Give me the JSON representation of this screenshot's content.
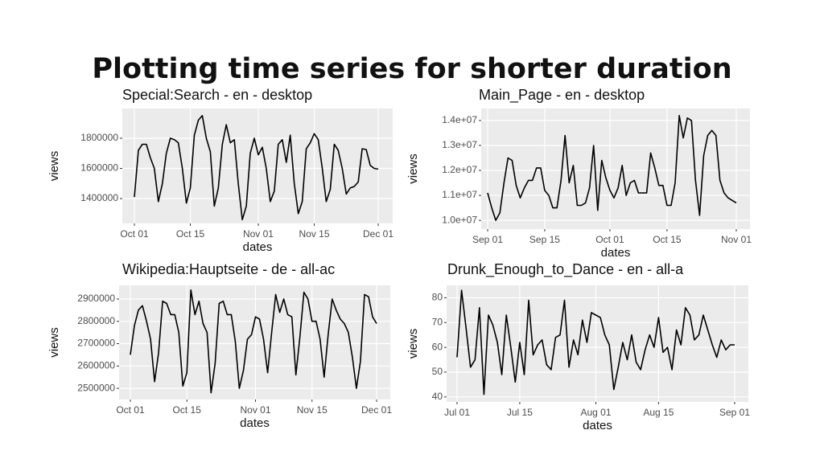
{
  "title": "Plotting time series for shorter duration",
  "chart_data": [
    {
      "type": "line",
      "title": "Special:Search - en - desktop",
      "x_label": "dates",
      "y_label": "views",
      "color": "#000000",
      "grid": true,
      "x": [
        "Oct 01",
        "Oct 02",
        "Oct 03",
        "Oct 04",
        "Oct 05",
        "Oct 06",
        "Oct 07",
        "Oct 08",
        "Oct 09",
        "Oct 10",
        "Oct 11",
        "Oct 12",
        "Oct 13",
        "Oct 14",
        "Oct 15",
        "Oct 16",
        "Oct 17",
        "Oct 18",
        "Oct 19",
        "Oct 20",
        "Oct 21",
        "Oct 22",
        "Oct 23",
        "Oct 24",
        "Oct 25",
        "Oct 26",
        "Oct 27",
        "Oct 28",
        "Oct 29",
        "Oct 30",
        "Oct 31",
        "Nov 01",
        "Nov 02",
        "Nov 03",
        "Nov 04",
        "Nov 05",
        "Nov 06",
        "Nov 07",
        "Nov 08",
        "Nov 09",
        "Nov 10",
        "Nov 11",
        "Nov 12",
        "Nov 13",
        "Nov 14",
        "Nov 15",
        "Nov 16",
        "Nov 17",
        "Nov 18",
        "Nov 19",
        "Nov 20",
        "Nov 21",
        "Nov 22",
        "Nov 23",
        "Nov 24",
        "Nov 25",
        "Nov 26",
        "Nov 27",
        "Nov 28",
        "Nov 29",
        "Nov 30",
        "Dec 01"
      ],
      "values": [
        1410000,
        1720000,
        1760000,
        1760000,
        1670000,
        1600000,
        1380000,
        1500000,
        1700000,
        1800000,
        1790000,
        1770000,
        1600000,
        1370000,
        1470000,
        1820000,
        1920000,
        1950000,
        1800000,
        1710000,
        1350000,
        1470000,
        1760000,
        1890000,
        1770000,
        1790000,
        1500000,
        1260000,
        1350000,
        1700000,
        1800000,
        1690000,
        1740000,
        1600000,
        1380000,
        1450000,
        1760000,
        1790000,
        1640000,
        1820000,
        1500000,
        1300000,
        1380000,
        1730000,
        1770000,
        1830000,
        1790000,
        1600000,
        1380000,
        1460000,
        1760000,
        1720000,
        1600000,
        1430000,
        1470000,
        1480000,
        1510000,
        1730000,
        1725000,
        1620000,
        1600000,
        1595000
      ],
      "xticks": [
        "Oct 01",
        "Oct 15",
        "Nov 01",
        "Nov 15",
        "Dec 01"
      ],
      "ylim": [
        1235000,
        1997000
      ],
      "yticks": [
        1400000,
        1600000,
        1800000
      ]
    },
    {
      "type": "line",
      "title": "Main_Page - en - desktop",
      "x_label": "dates",
      "y_label": "views",
      "color": "#000000",
      "grid": true,
      "x": [
        "Sep 01",
        "Sep 02",
        "Sep 03",
        "Sep 04",
        "Sep 05",
        "Sep 06",
        "Sep 07",
        "Sep 08",
        "Sep 09",
        "Sep 10",
        "Sep 11",
        "Sep 12",
        "Sep 13",
        "Sep 14",
        "Sep 15",
        "Sep 16",
        "Sep 17",
        "Sep 18",
        "Sep 19",
        "Sep 20",
        "Sep 21",
        "Sep 22",
        "Sep 23",
        "Sep 24",
        "Sep 25",
        "Sep 26",
        "Sep 27",
        "Sep 28",
        "Sep 29",
        "Sep 30",
        "Oct 01",
        "Oct 02",
        "Oct 03",
        "Oct 04",
        "Oct 05",
        "Oct 06",
        "Oct 07",
        "Oct 08",
        "Oct 09",
        "Oct 10",
        "Oct 11",
        "Oct 12",
        "Oct 13",
        "Oct 14",
        "Oct 15",
        "Oct 16",
        "Oct 17",
        "Oct 18",
        "Oct 19",
        "Oct 20",
        "Oct 21",
        "Oct 22",
        "Oct 23",
        "Oct 24",
        "Oct 25",
        "Oct 26",
        "Oct 27",
        "Oct 28",
        "Oct 29",
        "Oct 30",
        "Oct 31",
        "Nov 01"
      ],
      "values": [
        11100000,
        10500000,
        10000000,
        10300000,
        11500000,
        12500000,
        12400000,
        11400000,
        10900000,
        11300000,
        11600000,
        11600000,
        12100000,
        12100000,
        11200000,
        11000000,
        10500000,
        10500000,
        11600000,
        13400000,
        11500000,
        12200000,
        10600000,
        10600000,
        10700000,
        11300000,
        13000000,
        10400000,
        12400000,
        11700000,
        11200000,
        10900000,
        11300000,
        12200000,
        11000000,
        11500000,
        11600000,
        11100000,
        11100000,
        11100000,
        12700000,
        12100000,
        11400000,
        11400000,
        10600000,
        10600000,
        11500000,
        14200000,
        13300000,
        14100000,
        14000000,
        11600000,
        10200000,
        12600000,
        13400000,
        13600000,
        13400000,
        11600000,
        11100000,
        10900000,
        10800000,
        10700000
      ],
      "xticks": [
        "Sep 01",
        "Sep 15",
        "Oct 01",
        "Oct 15",
        "Nov 01"
      ],
      "ylim": [
        9650000,
        14480000
      ],
      "yticks": [
        {
          "value": 10000000,
          "label": "1.0e+07"
        },
        {
          "value": 11000000,
          "label": "1.1e+07"
        },
        {
          "value": 12000000,
          "label": "1.2e+07"
        },
        {
          "value": 13000000,
          "label": "1.3e+07"
        },
        {
          "value": 14000000,
          "label": "1.4e+07"
        }
      ]
    },
    {
      "type": "line",
      "title": "Wikipedia:Hauptseite - de - all-ac",
      "x_label": "dates",
      "y_label": "views",
      "color": "#000000",
      "grid": true,
      "x": [
        "Oct 01",
        "Oct 02",
        "Oct 03",
        "Oct 04",
        "Oct 05",
        "Oct 06",
        "Oct 07",
        "Oct 08",
        "Oct 09",
        "Oct 10",
        "Oct 11",
        "Oct 12",
        "Oct 13",
        "Oct 14",
        "Oct 15",
        "Oct 16",
        "Oct 17",
        "Oct 18",
        "Oct 19",
        "Oct 20",
        "Oct 21",
        "Oct 22",
        "Oct 23",
        "Oct 24",
        "Oct 25",
        "Oct 26",
        "Oct 27",
        "Oct 28",
        "Oct 29",
        "Oct 30",
        "Oct 31",
        "Nov 01",
        "Nov 02",
        "Nov 03",
        "Nov 04",
        "Nov 05",
        "Nov 06",
        "Nov 07",
        "Nov 08",
        "Nov 09",
        "Nov 10",
        "Nov 11",
        "Nov 12",
        "Nov 13",
        "Nov 14",
        "Nov 15",
        "Nov 16",
        "Nov 17",
        "Nov 18",
        "Nov 19",
        "Nov 20",
        "Nov 21",
        "Nov 22",
        "Nov 23",
        "Nov 24",
        "Nov 25",
        "Nov 26",
        "Nov 27",
        "Nov 28",
        "Nov 29",
        "Nov 30",
        "Dec 01"
      ],
      "values": [
        2650000,
        2780000,
        2850000,
        2870000,
        2800000,
        2720000,
        2530000,
        2660000,
        2890000,
        2880000,
        2830000,
        2830000,
        2750000,
        2510000,
        2570000,
        2940000,
        2830000,
        2890000,
        2790000,
        2750000,
        2480000,
        2610000,
        2880000,
        2890000,
        2830000,
        2830000,
        2710000,
        2500000,
        2580000,
        2720000,
        2740000,
        2820000,
        2810000,
        2720000,
        2570000,
        2750000,
        2920000,
        2840000,
        2900000,
        2830000,
        2820000,
        2560000,
        2730000,
        2930000,
        2900000,
        2800000,
        2800000,
        2720000,
        2550000,
        2740000,
        2900000,
        2850000,
        2810000,
        2790000,
        2750000,
        2640000,
        2500000,
        2620000,
        2920000,
        2910000,
        2820000,
        2790000
      ],
      "xticks": [
        "Oct 01",
        "Oct 15",
        "Nov 01",
        "Nov 15",
        "Dec 01"
      ],
      "ylim": [
        2450000,
        2961000
      ],
      "yticks": [
        2500000,
        2600000,
        2700000,
        2800000,
        2900000
      ]
    },
    {
      "type": "line",
      "title": "Drunk_Enough_to_Dance - en - all-a",
      "x_label": "dates",
      "y_label": "views",
      "color": "#000000",
      "grid": true,
      "x": [
        "Jul 01",
        "Jul 02",
        "Jul 03",
        "Jul 04",
        "Jul 05",
        "Jul 06",
        "Jul 07",
        "Jul 08",
        "Jul 09",
        "Jul 10",
        "Jul 11",
        "Jul 12",
        "Jul 13",
        "Jul 14",
        "Jul 15",
        "Jul 16",
        "Jul 17",
        "Jul 18",
        "Jul 19",
        "Jul 20",
        "Jul 21",
        "Jul 22",
        "Jul 23",
        "Jul 24",
        "Jul 25",
        "Jul 26",
        "Jul 27",
        "Jul 28",
        "Jul 29",
        "Jul 30",
        "Jul 31",
        "Aug 01",
        "Aug 02",
        "Aug 03",
        "Aug 04",
        "Aug 05",
        "Aug 06",
        "Aug 07",
        "Aug 08",
        "Aug 09",
        "Aug 10",
        "Aug 11",
        "Aug 12",
        "Aug 13",
        "Aug 14",
        "Aug 15",
        "Aug 16",
        "Aug 17",
        "Aug 18",
        "Aug 19",
        "Aug 20",
        "Aug 21",
        "Aug 22",
        "Aug 23",
        "Aug 24",
        "Aug 25",
        "Aug 26",
        "Aug 27",
        "Aug 28",
        "Aug 29",
        "Aug 30",
        "Aug 31",
        "Sep 01"
      ],
      "values": [
        56,
        83,
        68,
        52,
        55,
        76,
        41,
        73,
        69,
        62,
        49,
        73,
        60,
        46,
        62,
        49,
        79,
        57,
        61,
        63,
        53,
        51,
        64,
        65,
        79,
        52,
        63,
        57,
        71,
        62,
        74,
        73,
        72,
        65,
        61,
        43,
        52,
        62,
        55,
        65,
        54,
        51,
        59,
        65,
        60,
        72,
        58,
        60,
        51,
        67,
        61,
        76,
        73,
        63,
        65,
        73,
        67,
        61,
        56,
        63,
        59,
        61,
        61
      ],
      "xticks": [
        "Jul 01",
        "Jul 15",
        "Aug 01",
        "Aug 15",
        "Sep 01"
      ],
      "ylim": [
        38,
        85
      ],
      "yticks": [
        40,
        50,
        60,
        70,
        80
      ]
    }
  ]
}
